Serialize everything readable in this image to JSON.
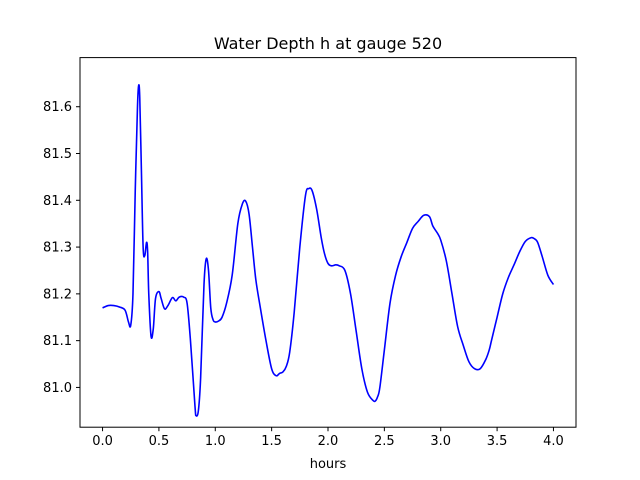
{
  "chart_data": {
    "type": "line",
    "title": "Water Depth h at gauge 520",
    "xlabel": "hours",
    "ylabel": "",
    "xlim": [
      -0.2,
      4.2
    ],
    "ylim": [
      80.915,
      81.705
    ],
    "xticks": [
      "0.0",
      "0.5",
      "1.0",
      "1.5",
      "2.0",
      "2.5",
      "3.0",
      "3.5",
      "4.0"
    ],
    "yticks": [
      "81.0",
      "81.1",
      "81.2",
      "81.3",
      "81.4",
      "81.5",
      "81.6"
    ],
    "grid": false,
    "legend": "none",
    "series": [
      {
        "color": "#0000ff",
        "x": [
          0.0,
          0.05,
          0.1,
          0.15,
          0.2,
          0.23,
          0.25,
          0.27,
          0.29,
          0.31,
          0.32,
          0.33,
          0.345,
          0.36,
          0.375,
          0.39,
          0.4,
          0.41,
          0.43,
          0.45,
          0.47,
          0.5,
          0.52,
          0.55,
          0.58,
          0.62,
          0.65,
          0.68,
          0.72,
          0.75,
          0.78,
          0.82,
          0.83,
          0.85,
          0.87,
          0.9,
          0.92,
          0.94,
          0.96,
          0.98,
          1.0,
          1.03,
          1.06,
          1.1,
          1.15,
          1.2,
          1.24,
          1.27,
          1.3,
          1.33,
          1.36,
          1.4,
          1.45,
          1.5,
          1.54,
          1.57,
          1.6,
          1.63,
          1.66,
          1.7,
          1.75,
          1.8,
          1.83,
          1.86,
          1.9,
          1.94,
          1.97,
          2.0,
          2.03,
          2.07,
          2.1,
          2.15,
          2.2,
          2.25,
          2.3,
          2.35,
          2.4,
          2.42,
          2.44,
          2.46,
          2.5,
          2.55,
          2.6,
          2.65,
          2.7,
          2.75,
          2.8,
          2.85,
          2.9,
          2.93,
          2.97,
          3.0,
          3.05,
          3.1,
          3.15,
          3.2,
          3.25,
          3.3,
          3.35,
          3.4,
          3.43,
          3.45,
          3.5,
          3.55,
          3.6,
          3.65,
          3.7,
          3.75,
          3.8,
          3.83,
          3.86,
          3.9,
          3.95,
          4.0
        ],
        "y": [
          81.17,
          81.175,
          81.175,
          81.172,
          81.165,
          81.14,
          81.133,
          81.2,
          81.42,
          81.6,
          81.645,
          81.62,
          81.46,
          81.3,
          81.282,
          81.31,
          81.29,
          81.2,
          81.11,
          81.125,
          81.19,
          81.205,
          81.19,
          81.168,
          81.175,
          81.192,
          81.185,
          81.193,
          81.193,
          81.18,
          81.1,
          80.96,
          80.94,
          80.95,
          81.02,
          81.22,
          81.275,
          81.25,
          81.17,
          81.145,
          81.14,
          81.142,
          81.15,
          81.18,
          81.24,
          81.35,
          81.392,
          81.398,
          81.37,
          81.3,
          81.23,
          81.17,
          81.1,
          81.04,
          81.025,
          81.03,
          81.033,
          81.045,
          81.075,
          81.16,
          81.3,
          81.41,
          81.425,
          81.42,
          81.38,
          81.32,
          81.285,
          81.265,
          81.26,
          81.262,
          81.26,
          81.25,
          81.2,
          81.12,
          81.04,
          80.99,
          80.972,
          80.971,
          80.98,
          81.0,
          81.08,
          81.18,
          81.24,
          81.28,
          81.31,
          81.34,
          81.355,
          81.368,
          81.365,
          81.345,
          81.33,
          81.315,
          81.27,
          81.2,
          81.13,
          81.09,
          81.055,
          81.04,
          81.04,
          81.06,
          81.08,
          81.1,
          81.15,
          81.2,
          81.235,
          81.262,
          81.29,
          81.312,
          81.32,
          81.318,
          81.31,
          81.28,
          81.24,
          81.22
        ]
      }
    ]
  }
}
